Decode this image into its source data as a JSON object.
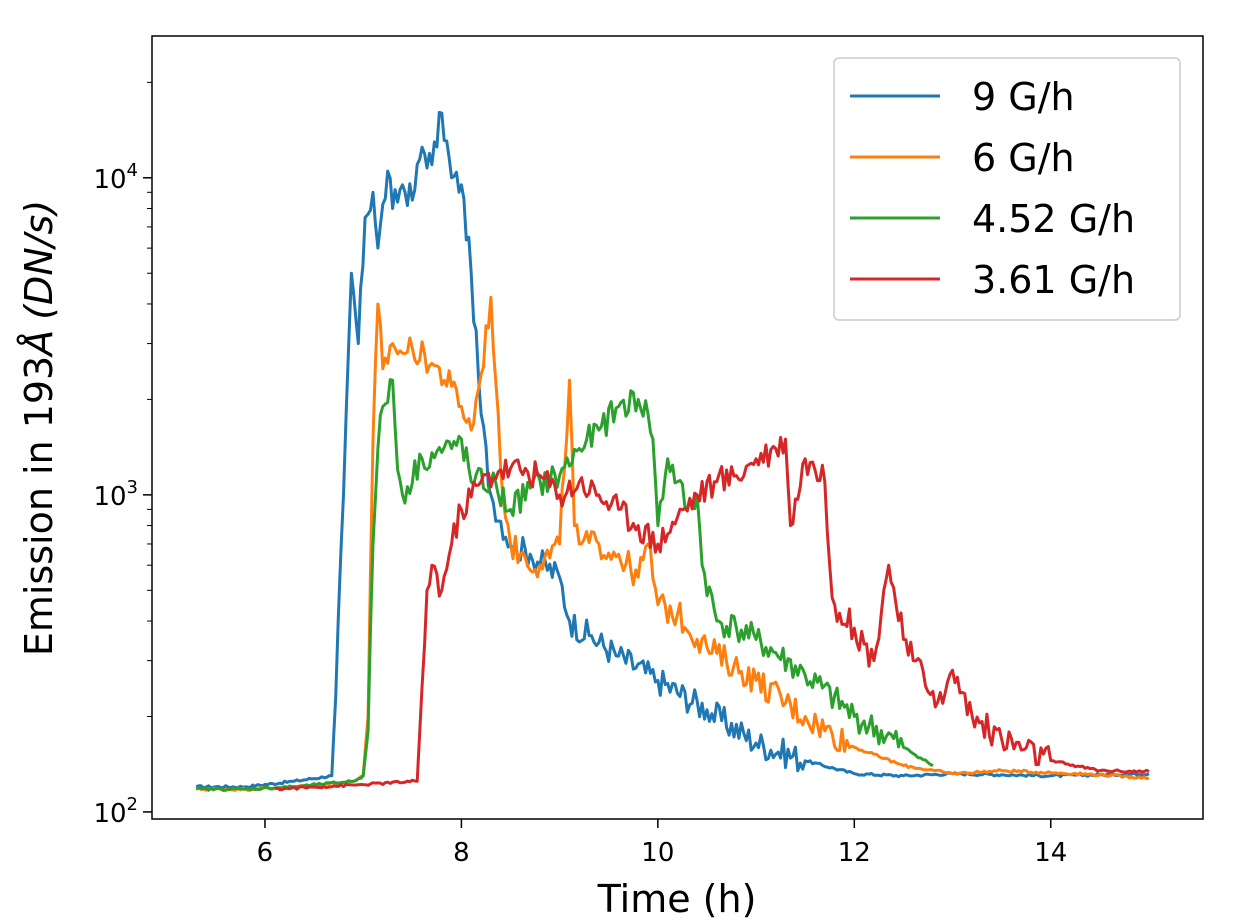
{
  "chart_data": {
    "type": "line",
    "title": "",
    "xlabel": "Time (h)",
    "ylabel_prefix": "Emission in 193",
    "ylabel_angstrom": "Å",
    "ylabel_units": "(DN/s)",
    "x_ticks": [
      "6",
      "8",
      "10",
      "12",
      "14"
    ],
    "y_ticks": [
      {
        "base": "10",
        "exp": "2",
        "value": 100
      },
      {
        "base": "10",
        "exp": "3",
        "value": 1000
      },
      {
        "base": "10",
        "exp": "4",
        "value": 10000
      }
    ],
    "xlim": [
      4.85,
      15.55
    ],
    "ylim": [
      95,
      28000
    ],
    "yscale": "log",
    "legend_position": "top-right",
    "series": [
      {
        "name": "9 G/h",
        "color": "#1f77b4",
        "x": [
          5.3,
          5.8,
          6.3,
          6.68,
          6.72,
          6.8,
          6.88,
          6.95,
          7.02,
          7.1,
          7.15,
          7.25,
          7.3,
          7.4,
          7.5,
          7.6,
          7.7,
          7.8,
          7.9,
          8.0,
          8.1,
          8.2,
          8.3,
          8.5,
          8.7,
          9.0,
          9.1,
          9.3,
          9.6,
          10.0,
          10.5,
          11.0,
          11.5,
          12.0,
          12.5,
          13.0,
          13.5,
          14.0,
          14.5,
          15.0
        ],
        "y": [
          120,
          120,
          125,
          130,
          230,
          1000,
          5000,
          3000,
          7500,
          9000,
          6000,
          10500,
          8000,
          9500,
          8500,
          12500,
          11000,
          16000,
          10000,
          9500,
          5000,
          1800,
          1000,
          700,
          650,
          550,
          400,
          360,
          310,
          260,
          210,
          165,
          145,
          132,
          130,
          132,
          131,
          130,
          131,
          132
        ]
      },
      {
        "name": "6 G/h",
        "color": "#ff7f0e",
        "x": [
          5.3,
          5.8,
          6.3,
          6.9,
          7.0,
          7.05,
          7.1,
          7.15,
          7.2,
          7.3,
          7.4,
          7.5,
          7.7,
          7.9,
          8.0,
          8.1,
          8.2,
          8.3,
          8.4,
          8.5,
          8.6,
          8.8,
          9.0,
          9.1,
          9.15,
          9.2,
          9.4,
          9.6,
          9.8,
          9.9,
          10.0,
          10.2,
          10.5,
          11.0,
          11.5,
          12.0,
          12.5,
          13.0,
          13.5,
          14.0,
          14.5,
          15.0
        ],
        "y": [
          118,
          118,
          120,
          125,
          130,
          200,
          1500,
          4000,
          2500,
          3000,
          2800,
          2900,
          2600,
          2200,
          1900,
          1600,
          2400,
          4200,
          1200,
          700,
          650,
          600,
          700,
          2300,
          800,
          700,
          700,
          650,
          550,
          700,
          450,
          420,
          330,
          260,
          200,
          160,
          140,
          132,
          135,
          133,
          131,
          128
        ]
      },
      {
        "name": "4.52 G/h",
        "color": "#2ca02c",
        "x": [
          5.3,
          5.8,
          6.3,
          6.9,
          7.0,
          7.05,
          7.1,
          7.15,
          7.2,
          7.3,
          7.35,
          7.4,
          7.6,
          7.9,
          8.0,
          8.1,
          8.3,
          8.5,
          8.7,
          9.0,
          9.2,
          9.4,
          9.6,
          9.8,
          9.9,
          9.95,
          10.0,
          10.1,
          10.2,
          10.3,
          10.4,
          10.45,
          10.6,
          10.8,
          11.0,
          11.5,
          12.0,
          12.5,
          12.8
        ],
        "y": [
          118,
          118,
          120,
          125,
          130,
          180,
          700,
          1400,
          1900,
          2300,
          1200,
          1000,
          1300,
          1400,
          1500,
          1100,
          1100,
          900,
          1050,
          1150,
          1400,
          1600,
          1900,
          2000,
          1800,
          1500,
          800,
          1300,
          1100,
          900,
          1000,
          600,
          400,
          380,
          350,
          270,
          200,
          160,
          140
        ]
      },
      {
        "name": "3.61 G/h",
        "color": "#d62728",
        "x": [
          6.1,
          7.0,
          7.55,
          7.6,
          7.65,
          7.7,
          7.8,
          7.9,
          8.0,
          8.2,
          8.4,
          8.6,
          8.8,
          9.0,
          9.2,
          9.4,
          9.6,
          9.8,
          10.0,
          10.2,
          10.4,
          10.6,
          10.8,
          11.0,
          11.2,
          11.3,
          11.35,
          11.5,
          11.6,
          11.7,
          11.75,
          11.8,
          12.0,
          12.2,
          12.3,
          12.35,
          12.5,
          12.6,
          12.8,
          12.9,
          13.0,
          13.2,
          13.5,
          14.0,
          14.5,
          15.0
        ],
        "y": [
          118,
          122,
          125,
          250,
          500,
          600,
          500,
          700,
          900,
          1100,
          1200,
          1200,
          1150,
          1000,
          1100,
          1000,
          900,
          800,
          700,
          850,
          1000,
          1100,
          1150,
          1300,
          1400,
          1500,
          800,
          1300,
          1200,
          1100,
          600,
          450,
          380,
          300,
          500,
          600,
          350,
          300,
          240,
          220,
          280,
          200,
          170,
          145,
          135,
          134
        ]
      }
    ]
  }
}
